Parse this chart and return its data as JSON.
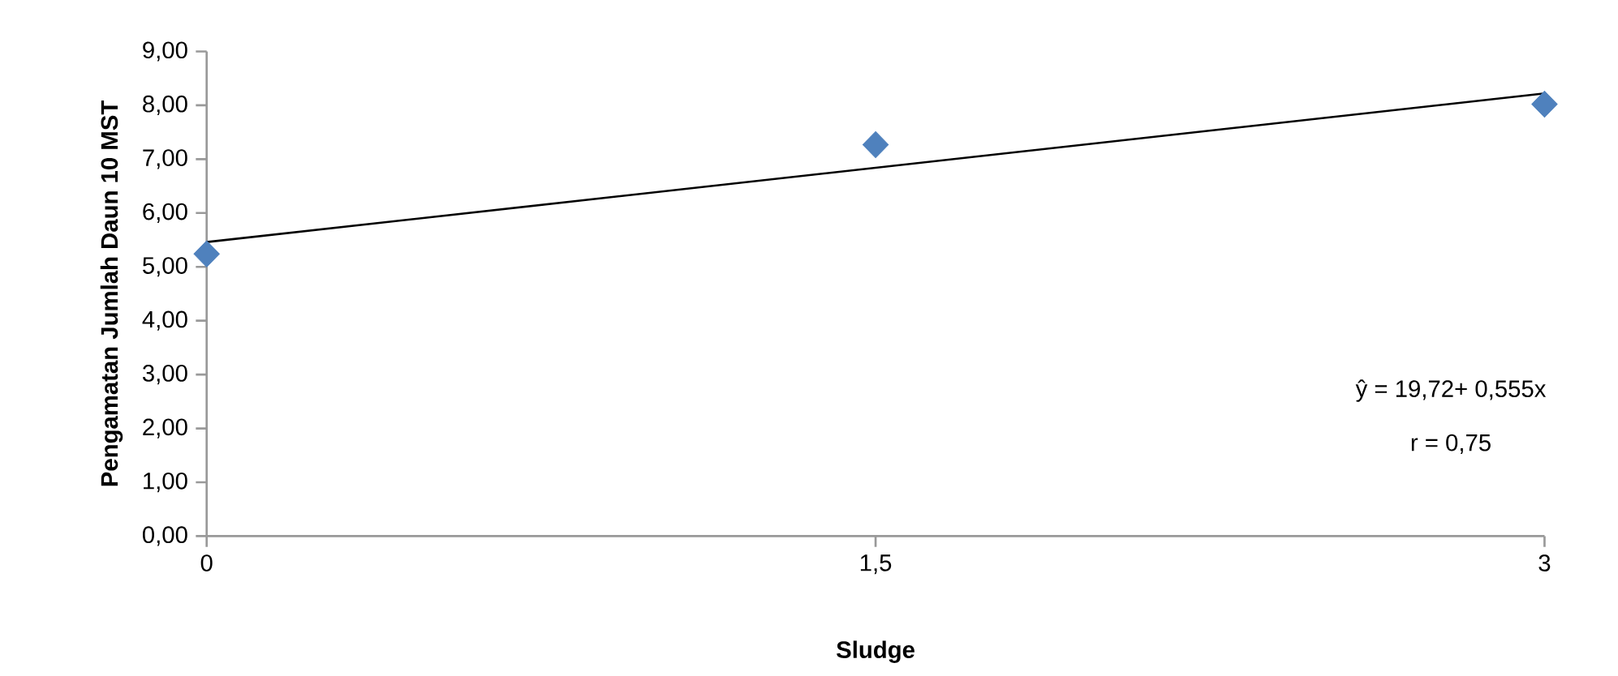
{
  "chart_data": {
    "type": "scatter",
    "xlabel": "Sludge",
    "ylabel": "Pengamatan Jumlah Daun 10 MST",
    "xlim": [
      0,
      3
    ],
    "xticks": [
      0,
      {
        "value": 1.5,
        "label": "1,5"
      },
      3
    ],
    "ylim": [
      0,
      9
    ],
    "yticks": [
      {
        "value": 0,
        "label": "0,00"
      },
      {
        "value": 1,
        "label": "1,00"
      },
      {
        "value": 2,
        "label": "2,00"
      },
      {
        "value": 3,
        "label": "3,00"
      },
      {
        "value": 4,
        "label": "4,00"
      },
      {
        "value": 5,
        "label": "5,00"
      },
      {
        "value": 6,
        "label": "6,00"
      },
      {
        "value": 7,
        "label": "7,00"
      },
      {
        "value": 8,
        "label": "8,00"
      },
      {
        "value": 9,
        "label": "9,00"
      }
    ],
    "series": [
      {
        "color": "#4f81bd",
        "marker": "diamond",
        "x": [
          0,
          1.5,
          3
        ],
        "values": [
          5.24,
          7.27,
          8.02
        ]
      },
      {
        "type": "line",
        "color": "#000000",
        "marker": "none",
        "line_style": "solid",
        "x": [
          0,
          3
        ],
        "values": [
          5.46,
          8.22
        ]
      }
    ],
    "annotations": [
      "ŷ = 19,72+ 0,555x",
      "r = 0,75"
    ]
  }
}
